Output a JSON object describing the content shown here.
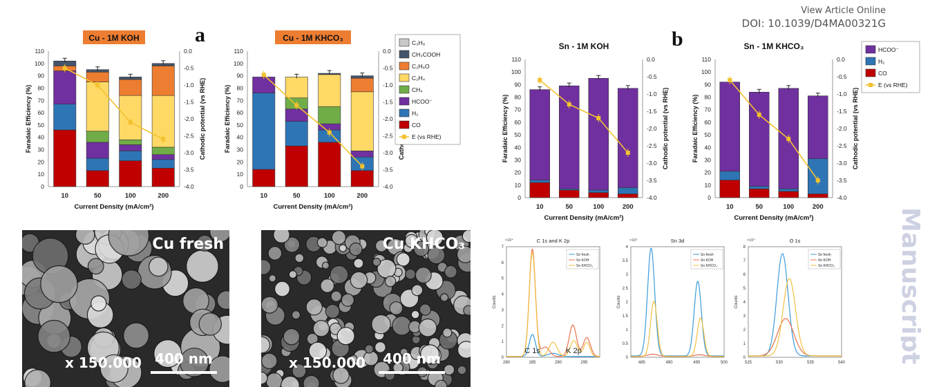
{
  "header": {
    "line1": "View Article Online",
    "line2": "DOI: 10.1039/D4MA00321G"
  },
  "panel_labels": {
    "a": "a",
    "b": "b"
  },
  "watermark": "Manuscript",
  "colors": {
    "C3H8": "#c8c8c8",
    "CH3COOH": "#44546a",
    "C2H6O": "#ed7d31",
    "C2H4": "#ffd966",
    "CH4": "#70ad47",
    "HCOO": "#7030a0",
    "H2": "#2e75b6",
    "CO": "#c00000",
    "E": "#f2c12e",
    "blue": "#3a9ad9",
    "red": "#e8704e",
    "yellow": "#f0c040"
  },
  "charts_text": {
    "ylabel": "Faradaic Efficiency (%)",
    "y2label": "Cathodic potential (vs RHE)",
    "xlabel": "Current Density (mA/cm²)",
    "yticks": [
      "0",
      "10",
      "20",
      "30",
      "40",
      "50",
      "60",
      "70",
      "80",
      "90",
      "100",
      "110"
    ],
    "y2ticks": [
      "0.0",
      "-0.5",
      "-1.0",
      "-1.5",
      "-2.0",
      "-2.5",
      "-3.0",
      "-3.5",
      "-4.0"
    ],
    "xticks": [
      "10",
      "50",
      "100",
      "200"
    ]
  },
  "legend_cu": [
    "C₃H₈",
    "CH₃COOH",
    "C₂H₆O",
    "C₂H₄",
    "CH₄",
    "HCOO⁻",
    "H₂",
    "CO",
    "E (vs RHE)"
  ],
  "legend_sn": [
    "HCOO⁻",
    "H₂",
    "CO",
    "E (vs RHE)"
  ],
  "chart_data": [
    {
      "type": "bar",
      "title": "Cu - 1M KOH",
      "xlabel": "Current Density (mA/cm²)",
      "ylabel": "Faradaic Efficiency (%)",
      "y2label": "Cathodic potential (vs RHE)",
      "categories": [
        "10",
        "50",
        "100",
        "200"
      ],
      "ylim": [
        0,
        110
      ],
      "y2lim": [
        0,
        -4.0
      ],
      "stacked": true,
      "series": [
        {
          "name": "CO",
          "key": "CO",
          "values": [
            46,
            13,
            21,
            15
          ]
        },
        {
          "name": "H₂",
          "key": "H2",
          "values": [
            21,
            10,
            8,
            7
          ]
        },
        {
          "name": "HCOO⁻",
          "key": "HCOO",
          "values": [
            27,
            13,
            5,
            4
          ]
        },
        {
          "name": "CH₄",
          "key": "CH4",
          "values": [
            0,
            9,
            4,
            6
          ]
        },
        {
          "name": "C₂H₄",
          "key": "C2H4",
          "values": [
            0,
            40,
            36,
            42
          ]
        },
        {
          "name": "C₂H₆O",
          "key": "C2H6O",
          "values": [
            4,
            8,
            13,
            24
          ]
        },
        {
          "name": "CH₃COOH",
          "key": "CH3COOH",
          "values": [
            4,
            2,
            2,
            2
          ]
        },
        {
          "name": "C₃H₈",
          "key": "C3H8",
          "values": [
            0,
            0,
            0,
            0
          ]
        }
      ],
      "potential": {
        "name": "E (vs RHE)",
        "values": [
          -0.5,
          -1.0,
          -2.1,
          -2.6
        ]
      }
    },
    {
      "type": "bar",
      "title": "Cu - 1M KHCO₃",
      "xlabel": "Current Density (mA/cm²)",
      "ylabel": "Faradaic Efficiency (%)",
      "y2label": "Cathodic potential (vs RHE)",
      "categories": [
        "10",
        "50",
        "100",
        "200"
      ],
      "ylim": [
        0,
        110
      ],
      "y2lim": [
        0,
        -4.0
      ],
      "stacked": true,
      "series": [
        {
          "name": "CO",
          "key": "CO",
          "values": [
            14,
            33,
            36,
            13
          ]
        },
        {
          "name": "H₂",
          "key": "H2",
          "values": [
            62,
            20,
            10,
            11
          ]
        },
        {
          "name": "HCOO⁻",
          "key": "HCOO",
          "values": [
            13,
            10,
            5,
            5
          ]
        },
        {
          "name": "CH₄",
          "key": "CH4",
          "values": [
            0,
            9,
            14,
            0
          ]
        },
        {
          "name": "C₂H₄",
          "key": "C2H4",
          "values": [
            0,
            17,
            26,
            48
          ]
        },
        {
          "name": "C₂H₆O",
          "key": "C2H6O",
          "values": [
            0,
            0,
            0,
            11
          ]
        },
        {
          "name": "CH₃COOH",
          "key": "CH3COOH",
          "values": [
            0,
            0,
            1,
            2
          ]
        },
        {
          "name": "C₃H₈",
          "key": "C3H8",
          "values": [
            0,
            0,
            0,
            0
          ]
        }
      ],
      "potential": {
        "name": "E (vs RHE)",
        "values": [
          -0.7,
          -1.6,
          -2.4,
          -3.4
        ]
      }
    },
    {
      "type": "bar",
      "title": "Sn - 1M KOH",
      "xlabel": "Current Density (mA/cm²)",
      "ylabel": "Faradaic Efficiency (%)",
      "y2label": "Cathodic potential (vs RHE)",
      "categories": [
        "10",
        "50",
        "100",
        "200"
      ],
      "ylim": [
        0,
        110
      ],
      "y2lim": [
        0,
        -4.0
      ],
      "stacked": true,
      "series": [
        {
          "name": "CO",
          "key": "CO",
          "values": [
            12,
            6,
            4,
            3
          ]
        },
        {
          "name": "H₂",
          "key": "H2",
          "values": [
            2,
            1,
            2,
            5
          ]
        },
        {
          "name": "HCOO⁻",
          "key": "HCOO",
          "values": [
            72,
            82,
            89,
            79
          ]
        }
      ],
      "potential": {
        "name": "E (vs RHE)",
        "values": [
          -0.6,
          -1.3,
          -1.7,
          -2.7
        ]
      }
    },
    {
      "type": "bar",
      "title": "Sn - 1M KHCO₃",
      "xlabel": "Current Density (mA/cm²)",
      "ylabel": "Faradaic Efficiency (%)",
      "y2label": "Cathodic potential (vs RHE)",
      "categories": [
        "10",
        "50",
        "100",
        "200"
      ],
      "ylim": [
        0,
        110
      ],
      "y2lim": [
        0,
        -4.0
      ],
      "stacked": true,
      "series": [
        {
          "name": "CO",
          "key": "CO",
          "values": [
            14,
            7,
            5,
            3
          ]
        },
        {
          "name": "H₂",
          "key": "H2",
          "values": [
            7,
            2,
            2,
            28
          ]
        },
        {
          "name": "HCOO⁻",
          "key": "HCOO",
          "values": [
            71,
            75,
            80,
            50
          ]
        }
      ],
      "potential": {
        "name": "E (vs RHE)",
        "values": [
          -0.6,
          -1.6,
          -2.3,
          -3.5
        ]
      }
    },
    {
      "type": "line",
      "title": "C 1s and K 2p",
      "xlim": [
        280,
        298
      ],
      "xticks": [
        "280",
        "285",
        "290",
        "295"
      ],
      "ylim": [
        0,
        7
      ],
      "yexp": "×10⁴",
      "yticks": [
        "0",
        "1",
        "2",
        "3",
        "4",
        "5",
        "6",
        "7"
      ],
      "ylabel": "Counts",
      "annotations": [
        "C 1s",
        "K 2p"
      ],
      "series": [
        {
          "name": "Sn fresh",
          "color": "blue",
          "peaks": [
            [
              285,
              1.4,
              0.6
            ],
            [
              289,
              0.2,
              1.0
            ]
          ],
          "base": 0.05
        },
        {
          "name": "Sn KOH",
          "color": "red",
          "peaks": [
            [
              285,
              6.8,
              0.6
            ],
            [
              287.5,
              0.6,
              0.8
            ],
            [
              292.8,
              2.0,
              0.7
            ],
            [
              295.5,
              1.2,
              0.7
            ]
          ],
          "base": 0.05
        },
        {
          "name": "Sn KHCO₃",
          "color": "yellow",
          "peaks": [
            [
              285,
              6.6,
              0.6
            ],
            [
              289,
              0.9,
              0.8
            ],
            [
              293,
              1.0,
              0.7
            ],
            [
              295.5,
              0.9,
              0.6
            ]
          ],
          "base": 0.05
        }
      ]
    },
    {
      "type": "line",
      "title": "Sn 3d",
      "xlim": [
        483,
        500
      ],
      "xticks": [
        "485",
        "490",
        "495",
        "500"
      ],
      "ylim": [
        0,
        4
      ],
      "yexp": "×10⁵",
      "yticks": [
        "0",
        "0.5",
        "1",
        "1.5",
        "2",
        "2.5",
        "3",
        "3.5",
        "4"
      ],
      "ylabel": "Counts",
      "series": [
        {
          "name": "Sn fresh",
          "color": "blue",
          "peaks": [
            [
              486.7,
              3.9,
              0.65
            ],
            [
              495.2,
              2.7,
              0.65
            ]
          ],
          "base": 0.05
        },
        {
          "name": "Sn KOH",
          "color": "red",
          "peaks": [
            [
              487,
              0.08,
              1.0
            ],
            [
              495.5,
              0.06,
              1.0
            ]
          ],
          "base": 0.03
        },
        {
          "name": "Sn KHCO₃",
          "color": "yellow",
          "peaks": [
            [
              487.2,
              2.0,
              0.6
            ],
            [
              495.7,
              1.4,
              0.6
            ]
          ],
          "base": 0.03
        }
      ]
    },
    {
      "type": "line",
      "title": "O 1s",
      "xlim": [
        525,
        540
      ],
      "xticks": [
        "525",
        "530",
        "535",
        "540"
      ],
      "ylim": [
        0,
        8
      ],
      "yexp": "×10⁴",
      "yticks": [
        "0",
        "1",
        "2",
        "3",
        "4",
        "5",
        "6",
        "7",
        "8"
      ],
      "ylabel": "Counts",
      "series": [
        {
          "name": "Sn fresh",
          "color": "blue",
          "peaks": [
            [
              530.5,
              7.4,
              0.9
            ]
          ],
          "base": 0.1
        },
        {
          "name": "Sn KOH",
          "color": "red",
          "peaks": [
            [
              531,
              2.7,
              1.3
            ]
          ],
          "base": 0.1
        },
        {
          "name": "Sn KHCO₃",
          "color": "yellow",
          "peaks": [
            [
              531.6,
              5.6,
              1.0
            ]
          ],
          "base": 0.1
        }
      ]
    }
  ],
  "sem": [
    {
      "label": "Cu fresh",
      "mag": "x 150.000",
      "scale": "400 nm"
    },
    {
      "label": "Cu KHCO₃",
      "mag": "x 150.000",
      "scale": "400 nm"
    }
  ]
}
